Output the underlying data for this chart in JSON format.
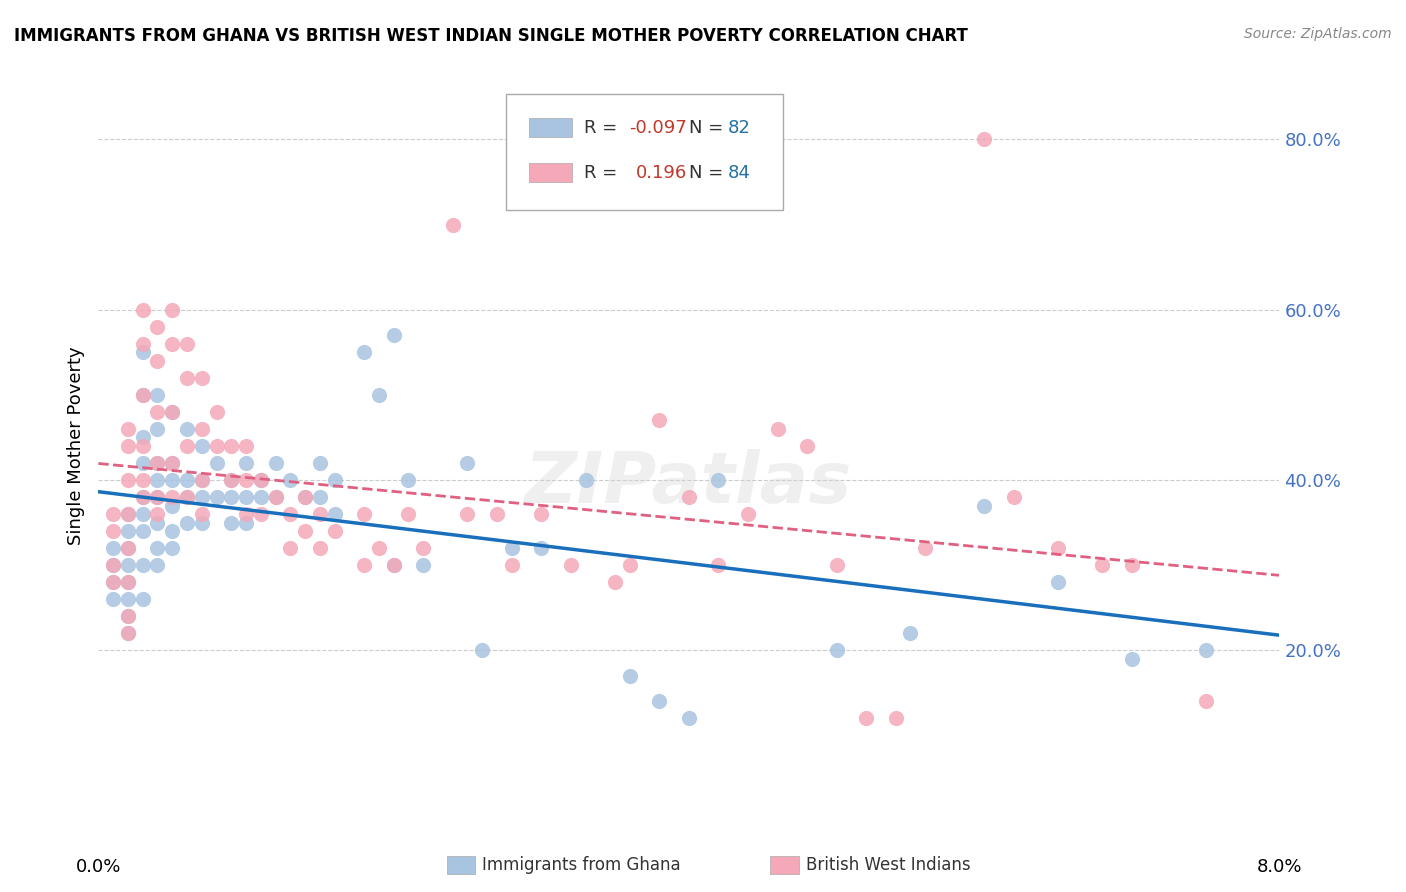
{
  "title": "IMMIGRANTS FROM GHANA VS BRITISH WEST INDIAN SINGLE MOTHER POVERTY CORRELATION CHART",
  "source": "Source: ZipAtlas.com",
  "ylabel": "Single Mother Poverty",
  "yticks": [
    0.0,
    0.2,
    0.4,
    0.6,
    0.8
  ],
  "ytick_labels": [
    "",
    "20.0%",
    "40.0%",
    "60.0%",
    "80.0%"
  ],
  "xmin": 0.0,
  "xmax": 0.08,
  "ymin": 0.0,
  "ymax": 0.88,
  "ghana_R": -0.097,
  "ghana_N": 82,
  "bwi_R": 0.196,
  "bwi_N": 84,
  "ghana_color": "#a8c4e0",
  "bwi_color": "#f4a8b8",
  "ghana_line_color": "#1a6fbd",
  "bwi_line_color": "#e06080",
  "watermark": "ZIPatlas",
  "ghana_scatter_x": [
    0.001,
    0.001,
    0.001,
    0.001,
    0.002,
    0.002,
    0.002,
    0.002,
    0.002,
    0.002,
    0.002,
    0.002,
    0.003,
    0.003,
    0.003,
    0.003,
    0.003,
    0.003,
    0.003,
    0.003,
    0.003,
    0.004,
    0.004,
    0.004,
    0.004,
    0.004,
    0.004,
    0.004,
    0.004,
    0.005,
    0.005,
    0.005,
    0.005,
    0.005,
    0.005,
    0.006,
    0.006,
    0.006,
    0.006,
    0.007,
    0.007,
    0.007,
    0.007,
    0.008,
    0.008,
    0.009,
    0.009,
    0.009,
    0.01,
    0.01,
    0.01,
    0.011,
    0.011,
    0.012,
    0.012,
    0.013,
    0.014,
    0.015,
    0.015,
    0.016,
    0.016,
    0.018,
    0.019,
    0.02,
    0.02,
    0.021,
    0.022,
    0.025,
    0.026,
    0.028,
    0.03,
    0.033,
    0.036,
    0.038,
    0.04,
    0.042,
    0.05,
    0.055,
    0.06,
    0.065,
    0.07,
    0.075
  ],
  "ghana_scatter_y": [
    0.32,
    0.3,
    0.28,
    0.26,
    0.36,
    0.34,
    0.32,
    0.3,
    0.28,
    0.26,
    0.24,
    0.22,
    0.55,
    0.5,
    0.45,
    0.42,
    0.38,
    0.36,
    0.34,
    0.3,
    0.26,
    0.5,
    0.46,
    0.42,
    0.4,
    0.38,
    0.35,
    0.32,
    0.3,
    0.48,
    0.42,
    0.4,
    0.37,
    0.34,
    0.32,
    0.46,
    0.4,
    0.38,
    0.35,
    0.44,
    0.4,
    0.38,
    0.35,
    0.42,
    0.38,
    0.4,
    0.38,
    0.35,
    0.42,
    0.38,
    0.35,
    0.4,
    0.38,
    0.42,
    0.38,
    0.4,
    0.38,
    0.42,
    0.38,
    0.4,
    0.36,
    0.55,
    0.5,
    0.57,
    0.3,
    0.4,
    0.3,
    0.42,
    0.2,
    0.32,
    0.32,
    0.4,
    0.17,
    0.14,
    0.12,
    0.4,
    0.2,
    0.22,
    0.37,
    0.28,
    0.19,
    0.2
  ],
  "bwi_scatter_x": [
    0.001,
    0.001,
    0.001,
    0.001,
    0.002,
    0.002,
    0.002,
    0.002,
    0.002,
    0.002,
    0.002,
    0.002,
    0.003,
    0.003,
    0.003,
    0.003,
    0.003,
    0.003,
    0.004,
    0.004,
    0.004,
    0.004,
    0.004,
    0.004,
    0.005,
    0.005,
    0.005,
    0.005,
    0.005,
    0.006,
    0.006,
    0.006,
    0.006,
    0.007,
    0.007,
    0.007,
    0.007,
    0.008,
    0.008,
    0.009,
    0.009,
    0.01,
    0.01,
    0.01,
    0.011,
    0.011,
    0.012,
    0.013,
    0.013,
    0.014,
    0.014,
    0.015,
    0.015,
    0.016,
    0.018,
    0.018,
    0.019,
    0.02,
    0.021,
    0.022,
    0.024,
    0.025,
    0.027,
    0.028,
    0.03,
    0.032,
    0.035,
    0.036,
    0.038,
    0.04,
    0.042,
    0.044,
    0.046,
    0.048,
    0.05,
    0.052,
    0.054,
    0.056,
    0.06,
    0.062,
    0.065,
    0.068,
    0.07,
    0.075
  ],
  "bwi_scatter_y": [
    0.36,
    0.34,
    0.3,
    0.28,
    0.46,
    0.44,
    0.4,
    0.36,
    0.32,
    0.28,
    0.24,
    0.22,
    0.6,
    0.56,
    0.5,
    0.44,
    0.4,
    0.38,
    0.58,
    0.54,
    0.48,
    0.42,
    0.38,
    0.36,
    0.6,
    0.56,
    0.48,
    0.42,
    0.38,
    0.56,
    0.52,
    0.44,
    0.38,
    0.52,
    0.46,
    0.4,
    0.36,
    0.48,
    0.44,
    0.44,
    0.4,
    0.44,
    0.4,
    0.36,
    0.4,
    0.36,
    0.38,
    0.36,
    0.32,
    0.38,
    0.34,
    0.36,
    0.32,
    0.34,
    0.36,
    0.3,
    0.32,
    0.3,
    0.36,
    0.32,
    0.7,
    0.36,
    0.36,
    0.3,
    0.36,
    0.3,
    0.28,
    0.3,
    0.47,
    0.38,
    0.3,
    0.36,
    0.46,
    0.44,
    0.3,
    0.12,
    0.12,
    0.32,
    0.8,
    0.38,
    0.32,
    0.3,
    0.3,
    0.14
  ]
}
